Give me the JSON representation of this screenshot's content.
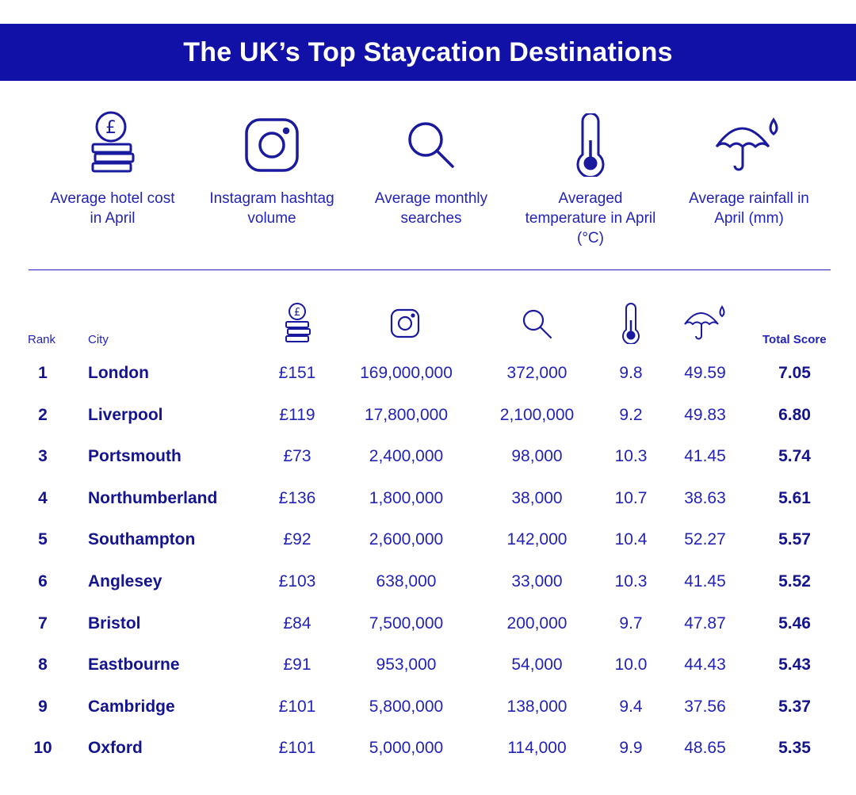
{
  "title": "The UK’s Top Staycation Destinations",
  "colors": {
    "banner": "#1111a8",
    "text": "#2323b5",
    "bold_text": "#14148f",
    "background": "#ffffff"
  },
  "legend": [
    {
      "icon": "pound-coins-icon",
      "label": "Average hotel cost in April"
    },
    {
      "icon": "instagram-icon",
      "label": "Instagram hashtag volume"
    },
    {
      "icon": "magnifier-icon",
      "label": "Average monthly searches"
    },
    {
      "icon": "thermometer-icon",
      "label": "Averaged temperature in April (°C)"
    },
    {
      "icon": "umbrella-rain-icon",
      "label": "Average rainfall in April (mm)"
    }
  ],
  "table_headers": {
    "rank": "Rank",
    "city": "City",
    "total": "Total Score"
  },
  "chart_data": {
    "type": "table",
    "title": "The UK’s Top Staycation Destinations",
    "columns": [
      "Rank",
      "City",
      "Average hotel cost in April",
      "Instagram hashtag volume",
      "Average monthly searches",
      "Averaged temperature in April (°C)",
      "Average rainfall in April (mm)",
      "Total Score"
    ],
    "rows": [
      {
        "rank": "1",
        "city": "London",
        "hotel": "£151",
        "instagram": "169,000,000",
        "searches": "372,000",
        "temp": "9.8",
        "rain": "49.59",
        "total": "7.05"
      },
      {
        "rank": "2",
        "city": "Liverpool",
        "hotel": "£119",
        "instagram": "17,800,000",
        "searches": "2,100,000",
        "temp": "9.2",
        "rain": "49.83",
        "total": "6.80"
      },
      {
        "rank": "3",
        "city": "Portsmouth",
        "hotel": "£73",
        "instagram": "2,400,000",
        "searches": "98,000",
        "temp": "10.3",
        "rain": "41.45",
        "total": "5.74"
      },
      {
        "rank": "4",
        "city": "Northumberland",
        "hotel": "£136",
        "instagram": "1,800,000",
        "searches": "38,000",
        "temp": "10.7",
        "rain": "38.63",
        "total": "5.61"
      },
      {
        "rank": "5",
        "city": "Southampton",
        "hotel": "£92",
        "instagram": "2,600,000",
        "searches": "142,000",
        "temp": "10.4",
        "rain": "52.27",
        "total": "5.57"
      },
      {
        "rank": "6",
        "city": "Anglesey",
        "hotel": "£103",
        "instagram": "638,000",
        "searches": "33,000",
        "temp": "10.3",
        "rain": "41.45",
        "total": "5.52"
      },
      {
        "rank": "7",
        "city": "Bristol",
        "hotel": "£84",
        "instagram": "7,500,000",
        "searches": "200,000",
        "temp": "9.7",
        "rain": "47.87",
        "total": "5.46"
      },
      {
        "rank": "8",
        "city": "Eastbourne",
        "hotel": "£91",
        "instagram": "953,000",
        "searches": "54,000",
        "temp": "10.0",
        "rain": "44.43",
        "total": "5.43"
      },
      {
        "rank": "9",
        "city": "Cambridge",
        "hotel": "£101",
        "instagram": "5,800,000",
        "searches": "138,000",
        "temp": "9.4",
        "rain": "37.56",
        "total": "5.37"
      },
      {
        "rank": "10",
        "city": "Oxford",
        "hotel": "£101",
        "instagram": "5,000,000",
        "searches": "114,000",
        "temp": "9.9",
        "rain": "48.65",
        "total": "5.35"
      }
    ]
  }
}
